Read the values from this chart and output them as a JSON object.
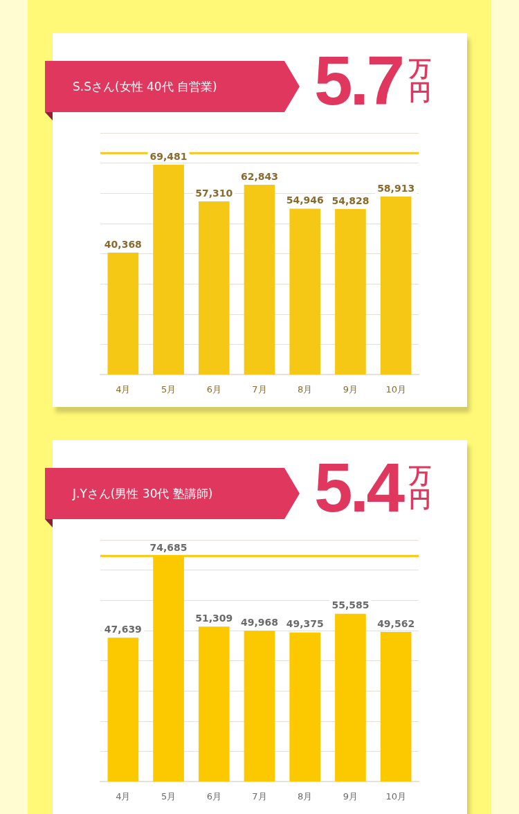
{
  "chart_data": [
    {
      "type": "bar",
      "title": "S.Sさん(女性 40代 自営業)",
      "subtitle": "5.7万円",
      "categories": [
        "4月",
        "5月",
        "6月",
        "7月",
        "8月",
        "9月",
        "10月"
      ],
      "values": [
        40368,
        69481,
        57310,
        62843,
        54946,
        54828,
        58913
      ],
      "value_labels": [
        "40,368",
        "69,481",
        "57,310",
        "62,843",
        "54,946",
        "54,828",
        "58,913"
      ],
      "color": "#f5c816",
      "grid": "y",
      "tick_labels": "x",
      "ref_lines": [
        {
          "axis": "y",
          "value": 73300,
          "color": "#f5c816"
        }
      ]
    },
    {
      "type": "bar",
      "title": "J.Yさん(男性 30代 塾講師)",
      "subtitle": "5.4万円",
      "categories": [
        "4月",
        "5月",
        "6月",
        "7月",
        "8月",
        "9月",
        "10月"
      ],
      "values": [
        47639,
        74685,
        51309,
        49968,
        49375,
        55585,
        49562
      ],
      "value_labels": [
        "47,639",
        "74,685",
        "51,309",
        "49,968",
        "49,375",
        "55,585",
        "49,562"
      ],
      "color": "#fcc800",
      "grid": "y",
      "tick_labels": "x",
      "ref_lines": [
        {
          "axis": "y",
          "value": 74700,
          "color": "#fcc800"
        }
      ]
    }
  ]
}
